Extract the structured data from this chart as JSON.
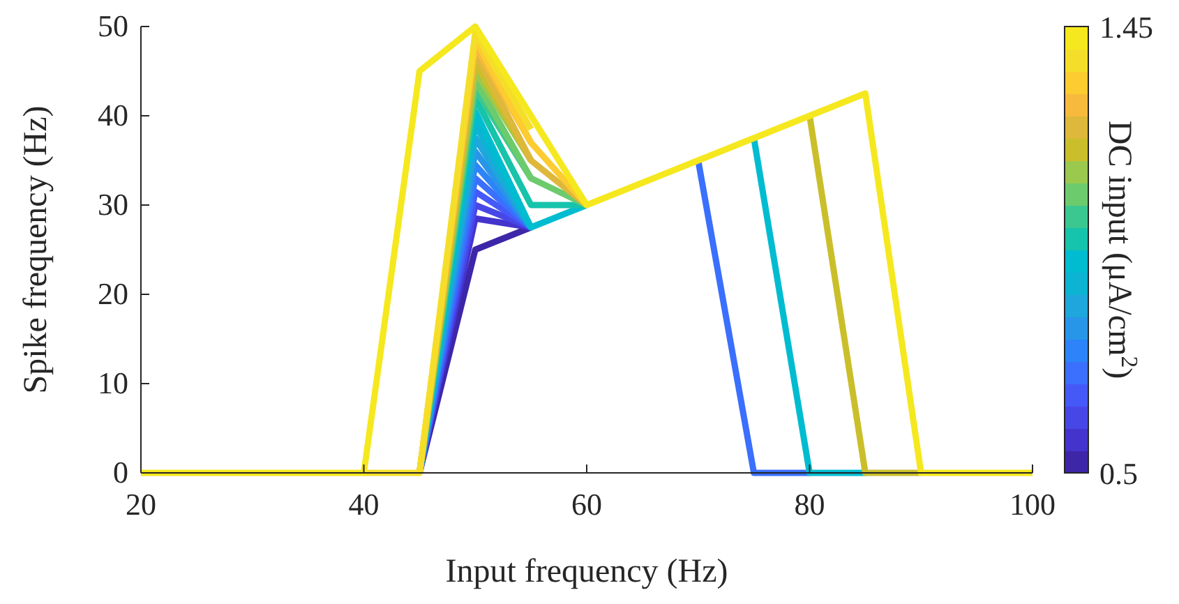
{
  "chart_data": {
    "type": "line",
    "xlabel": "Input frequency (Hz)",
    "ylabel": "Spike frequency (Hz)",
    "clabel": "DC input (μA/cm$^{2}$)",
    "x": [
      20,
      25,
      30,
      35,
      40,
      45,
      50,
      55,
      60,
      65,
      70,
      75,
      80,
      85,
      90,
      95,
      100
    ],
    "xlim": [
      20,
      100
    ],
    "xticks": [
      20,
      40,
      60,
      80,
      100
    ],
    "ylim": [
      0,
      50
    ],
    "yticks": [
      0,
      10,
      20,
      30,
      40,
      50
    ],
    "clim": [
      0.5,
      1.45
    ],
    "cticks": [
      0.5,
      1.45
    ],
    "grid": false,
    "marker": "none",
    "line_style": "solid",
    "series": [
      {
        "color": "#3e26a8",
        "values": [
          null,
          null,
          null,
          null,
          null,
          0,
          25,
          27.5,
          null,
          null,
          null,
          null,
          null,
          null,
          null,
          null,
          null
        ]
      },
      {
        "color": "#4433cc",
        "values": [
          null,
          null,
          null,
          null,
          null,
          0,
          28.5,
          27.5,
          null,
          null,
          null,
          null,
          null,
          null,
          null,
          null,
          null
        ]
      },
      {
        "color": "#4747e8",
        "values": [
          null,
          null,
          null,
          null,
          null,
          0,
          30,
          27.5,
          null,
          null,
          null,
          null,
          null,
          null,
          null,
          null,
          null
        ]
      },
      {
        "color": "#4559f8",
        "values": [
          null,
          null,
          null,
          null,
          null,
          0,
          31.5,
          27.5,
          null,
          null,
          null,
          null,
          null,
          null,
          null,
          null,
          null
        ]
      },
      {
        "color": "#3b6ffd",
        "values": [
          null,
          null,
          null,
          null,
          null,
          0,
          33,
          27.5,
          null,
          null,
          35,
          0,
          0,
          null,
          null,
          null,
          null
        ]
      },
      {
        "color": "#2c84f8",
        "values": [
          null,
          null,
          null,
          null,
          null,
          0,
          34.5,
          27.5,
          null,
          null,
          null,
          null,
          null,
          null,
          null,
          null,
          null
        ]
      },
      {
        "color": "#2896e8",
        "values": [
          null,
          null,
          null,
          null,
          null,
          0,
          36,
          27.5,
          null,
          null,
          null,
          null,
          null,
          null,
          null,
          null,
          null
        ]
      },
      {
        "color": "#1fa6dc",
        "values": [
          null,
          null,
          null,
          null,
          null,
          0,
          37.5,
          27.5,
          null,
          null,
          null,
          null,
          null,
          null,
          null,
          null,
          null
        ]
      },
      {
        "color": "#0db3d2",
        "values": [
          null,
          null,
          null,
          null,
          null,
          0,
          39,
          27.5,
          null,
          null,
          null,
          null,
          null,
          null,
          null,
          null,
          null
        ]
      },
      {
        "color": "#00bcd0",
        "values": [
          null,
          null,
          null,
          null,
          null,
          0,
          40.5,
          27.5,
          30,
          null,
          null,
          37.5,
          0,
          0,
          null,
          null,
          null
        ]
      },
      {
        "color": "#16c3ab",
        "values": [
          null,
          null,
          null,
          null,
          null,
          0,
          42,
          30,
          30,
          null,
          null,
          null,
          null,
          null,
          null,
          null,
          null
        ]
      },
      {
        "color": "#3bc890",
        "values": [
          null,
          null,
          null,
          null,
          null,
          0,
          43,
          33,
          null,
          null,
          null,
          null,
          null,
          null,
          null,
          null,
          null
        ]
      },
      {
        "color": "#6ccb6c",
        "values": [
          null,
          null,
          null,
          null,
          null,
          0,
          44,
          33,
          30,
          null,
          null,
          null,
          null,
          null,
          null,
          null,
          null
        ]
      },
      {
        "color": "#9bc94e",
        "values": [
          null,
          null,
          null,
          null,
          null,
          0,
          45,
          35,
          null,
          null,
          null,
          null,
          null,
          null,
          null,
          null,
          null
        ]
      },
      {
        "color": "#cabf2a",
        "values": [
          null,
          null,
          null,
          null,
          null,
          0,
          46,
          35,
          null,
          null,
          null,
          null,
          40,
          0,
          0,
          null,
          null
        ]
      },
      {
        "color": "#ddb83a",
        "values": [
          null,
          null,
          null,
          null,
          null,
          0,
          47,
          35,
          30,
          null,
          null,
          null,
          null,
          null,
          null,
          null,
          null
        ]
      },
      {
        "color": "#f7ba3d",
        "values": [
          null,
          null,
          null,
          null,
          null,
          0,
          47.8,
          37,
          null,
          null,
          null,
          null,
          null,
          null,
          null,
          null,
          null
        ]
      },
      {
        "color": "#fdcc30",
        "values": [
          null,
          null,
          null,
          null,
          null,
          0,
          48.6,
          37,
          30,
          null,
          null,
          null,
          null,
          null,
          null,
          null,
          null
        ]
      },
      {
        "color": "#f5de2a",
        "values": [
          null,
          null,
          null,
          null,
          0,
          0,
          49.3,
          38.5,
          null,
          null,
          null,
          null,
          null,
          null,
          null,
          null,
          null
        ]
      },
      {
        "color": "#f5e81e",
        "values": [
          0,
          0,
          0,
          0,
          0,
          45,
          50,
          40,
          30,
          32.5,
          35,
          37.5,
          40,
          42.5,
          0,
          0,
          0
        ]
      }
    ]
  }
}
